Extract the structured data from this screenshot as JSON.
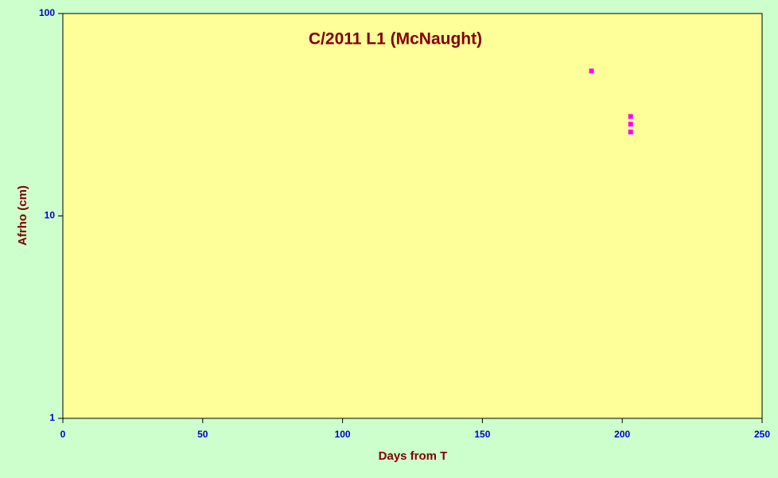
{
  "chart_data": {
    "type": "scatter",
    "title": "C/2011 L1 (McNaught)",
    "x_label": "Days from T",
    "y_label": "Afrho (cm)",
    "x": [
      189,
      203,
      203,
      203
    ],
    "values": [
      52,
      31,
      28.4,
      26
    ],
    "color": "#ff00ff",
    "xlim": [
      0,
      250
    ],
    "xticks": [
      0,
      50,
      100,
      150,
      200,
      250
    ],
    "ylim": [
      1,
      100
    ],
    "yticks": [
      1,
      10,
      100
    ],
    "ylog": true,
    "grid": false
  }
}
